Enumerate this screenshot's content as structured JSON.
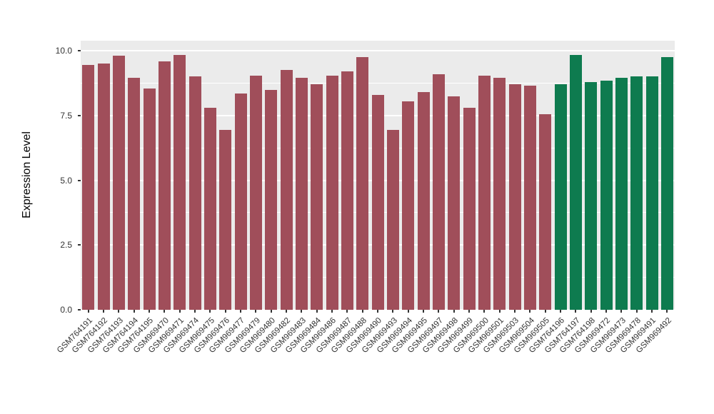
{
  "figure": {
    "background": "#FFFFFF",
    "panel_background": "#EBEBEB",
    "grid_color": "#FFFFFF"
  },
  "chart_data": {
    "type": "bar",
    "title": "",
    "xlabel": "",
    "ylabel": "Expression Level",
    "ylim": [
      0,
      10.39
    ],
    "yticks": [
      0,
      2.5,
      5,
      7.5,
      10
    ],
    "ytick_labels": [
      "0.0",
      "2.5",
      "5.0",
      "7.5",
      "10.0"
    ],
    "minor_ticks": [
      1.25,
      3.75,
      6.25,
      8.75
    ],
    "grid": "on",
    "legend_position": "none",
    "categories": [
      "GSM764191",
      "GSM764192",
      "GSM764193",
      "GSM764194",
      "GSM764195",
      "GSM969470",
      "GSM969471",
      "GSM969474",
      "GSM969475",
      "GSM969476",
      "GSM969477",
      "GSM969479",
      "GSM969480",
      "GSM969482",
      "GSM969483",
      "GSM969484",
      "GSM969486",
      "GSM969487",
      "GSM969488",
      "GSM969490",
      "GSM969493",
      "GSM969494",
      "GSM969495",
      "GSM969497",
      "GSM969498",
      "GSM969499",
      "GSM969500",
      "GSM969501",
      "GSM969503",
      "GSM969504",
      "GSM969505",
      "GSM764196",
      "GSM764197",
      "GSM764198",
      "GSM969472",
      "GSM969473",
      "GSM969478",
      "GSM969491",
      "GSM969492"
    ],
    "values": [
      9.45,
      9.5,
      9.8,
      8.95,
      8.55,
      9.6,
      9.85,
      9.0,
      7.8,
      6.95,
      8.35,
      9.05,
      8.5,
      9.25,
      8.95,
      8.7,
      9.05,
      9.2,
      9.75,
      8.3,
      6.95,
      8.05,
      8.4,
      9.1,
      8.25,
      7.8,
      9.05,
      8.95,
      8.7,
      8.65,
      7.55,
      8.7,
      9.85,
      8.8,
      8.85,
      8.95,
      9.0,
      9.0,
      9.75
    ],
    "groups": [
      "red",
      "red",
      "red",
      "red",
      "red",
      "red",
      "red",
      "red",
      "red",
      "red",
      "red",
      "red",
      "red",
      "red",
      "red",
      "red",
      "red",
      "red",
      "red",
      "red",
      "red",
      "red",
      "red",
      "red",
      "red",
      "red",
      "red",
      "red",
      "red",
      "red",
      "red",
      "green",
      "green",
      "green",
      "green",
      "green",
      "green",
      "green",
      "green"
    ],
    "colors": {
      "red": "#A04E5A",
      "green": "#0E7B4F"
    }
  }
}
